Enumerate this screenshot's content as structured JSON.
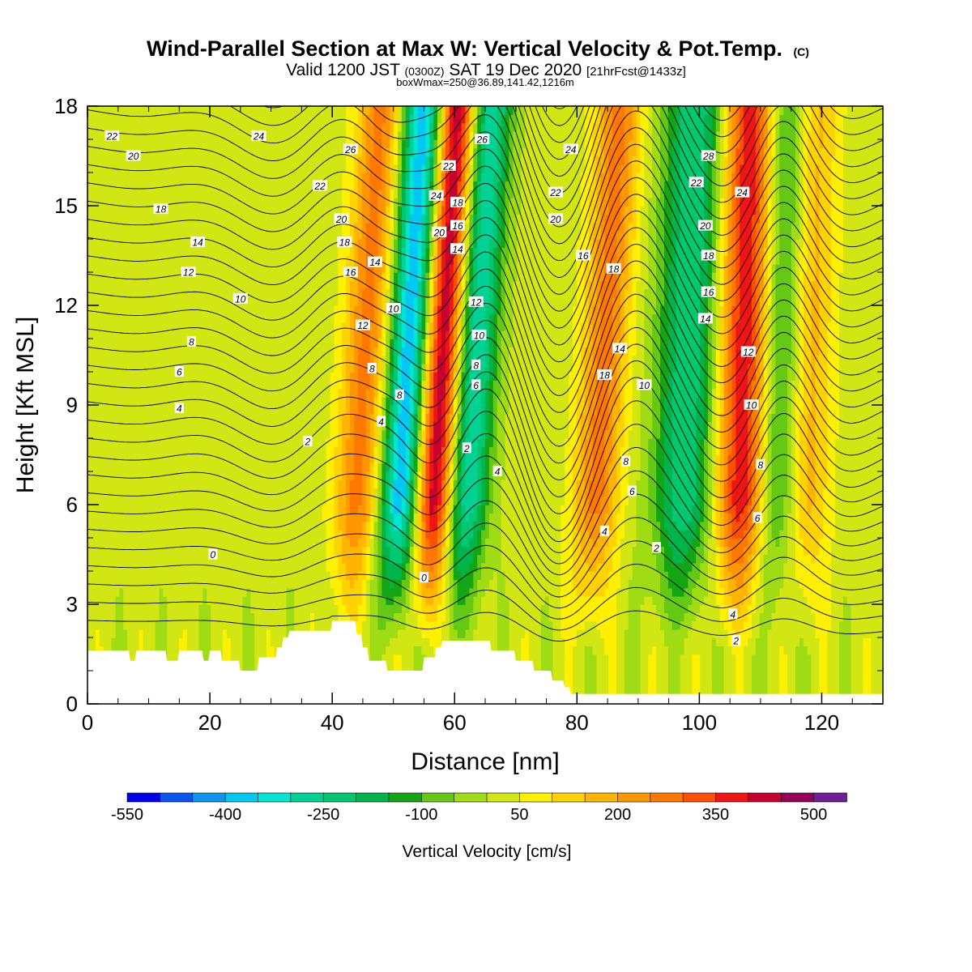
{
  "title": {
    "main": "Wind-Parallel Section at Max W: Vertical Velocity & Pot.Temp.",
    "main_mark": "(C)",
    "line2_a": "Valid 1200 JST",
    "line2_b": "(0300Z)",
    "line2_c": "SAT 19 Dec 2020",
    "line2_d": "[21hrFcst@1433z]",
    "line3": "boxWmax=250@36.89,141.42,1216m"
  },
  "chart_data": {
    "type": "heatmap",
    "xlabel": "Distance [nm]",
    "ylabel": "Height [Kft MSL]",
    "xlim": [
      0,
      130
    ],
    "ylim": [
      0,
      18
    ],
    "x_ticks": [
      "0",
      "20",
      "40",
      "60",
      "80",
      "100",
      "120"
    ],
    "y_ticks": [
      "0",
      "3",
      "6",
      "9",
      "12",
      "15",
      "18"
    ],
    "colorbar": {
      "label": "Vertical Velocity [cm/s]",
      "ticks": [
        "-550",
        "-400",
        "-250",
        "-100",
        "50",
        "200",
        "350",
        "500"
      ],
      "levels": [
        -550,
        -500,
        -450,
        -400,
        -350,
        -300,
        -250,
        -200,
        -150,
        -100,
        -50,
        0,
        50,
        100,
        150,
        200,
        250,
        300,
        350,
        400,
        450,
        500,
        550
      ],
      "colors": [
        "#0000ee",
        "#0a55f0",
        "#0a96f5",
        "#00c8f5",
        "#00e6d2",
        "#00d296",
        "#00c86e",
        "#00b44b",
        "#14a514",
        "#64c814",
        "#a0dc14",
        "#d2e614",
        "#fff000",
        "#ffd200",
        "#ffb400",
        "#ff9600",
        "#ff7800",
        "#ff5000",
        "#f01414",
        "#c8002d",
        "#96005a",
        "#6e1e96"
      ]
    },
    "updrafts": [
      {
        "x_nm": 57.5,
        "peak_cm_s": 450
      },
      {
        "x_nm": 84,
        "peak_cm_s": 250
      },
      {
        "x_nm": 107,
        "peak_cm_s": 380
      },
      {
        "x_nm": 118,
        "peak_cm_s": 150
      },
      {
        "x_nm": 45,
        "peak_cm_s": 250
      }
    ],
    "downdrafts": [
      {
        "x_nm": 52,
        "peak_cm_s": -420
      },
      {
        "x_nm": 63,
        "peak_cm_s": -320
      },
      {
        "x_nm": 98,
        "peak_cm_s": -270
      },
      {
        "x_nm": 113,
        "peak_cm_s": -180
      }
    ],
    "theta_contour_labels": [
      {
        "value": "22",
        "x_nm": 4,
        "y_kft": 17.1
      },
      {
        "value": "20",
        "x_nm": 7.5,
        "y_kft": 16.5
      },
      {
        "value": "18",
        "x_nm": 12,
        "y_kft": 14.9
      },
      {
        "value": "14",
        "x_nm": 18,
        "y_kft": 13.9
      },
      {
        "value": "12",
        "x_nm": 16.5,
        "y_kft": 13.0
      },
      {
        "value": "10",
        "x_nm": 25,
        "y_kft": 12.2
      },
      {
        "value": "8",
        "x_nm": 17,
        "y_kft": 10.9
      },
      {
        "value": "6",
        "x_nm": 15,
        "y_kft": 10.0
      },
      {
        "value": "4",
        "x_nm": 15,
        "y_kft": 8.9
      },
      {
        "value": "2",
        "x_nm": 36,
        "y_kft": 7.9
      },
      {
        "value": "0",
        "x_nm": 20.5,
        "y_kft": 4.5
      },
      {
        "value": "24",
        "x_nm": 28,
        "y_kft": 17.1
      },
      {
        "value": "26",
        "x_nm": 43,
        "y_kft": 16.7
      },
      {
        "value": "22",
        "x_nm": 38,
        "y_kft": 15.6
      },
      {
        "value": "20",
        "x_nm": 41.5,
        "y_kft": 14.6
      },
      {
        "value": "18",
        "x_nm": 42,
        "y_kft": 13.9
      },
      {
        "value": "16",
        "x_nm": 43,
        "y_kft": 13.0
      },
      {
        "value": "14",
        "x_nm": 47,
        "y_kft": 13.3
      },
      {
        "value": "12",
        "x_nm": 45,
        "y_kft": 11.4
      },
      {
        "value": "10",
        "x_nm": 50,
        "y_kft": 11.9
      },
      {
        "value": "8",
        "x_nm": 46.5,
        "y_kft": 10.1
      },
      {
        "value": "8",
        "x_nm": 51,
        "y_kft": 9.3
      },
      {
        "value": "4",
        "x_nm": 48,
        "y_kft": 8.5
      },
      {
        "value": "0",
        "x_nm": 55,
        "y_kft": 3.8
      },
      {
        "value": "22",
        "x_nm": 59,
        "y_kft": 16.2
      },
      {
        "value": "24",
        "x_nm": 57,
        "y_kft": 15.3
      },
      {
        "value": "20",
        "x_nm": 57.5,
        "y_kft": 14.2
      },
      {
        "value": "18",
        "x_nm": 60.5,
        "y_kft": 15.1
      },
      {
        "value": "16",
        "x_nm": 60.5,
        "y_kft": 14.4
      },
      {
        "value": "14",
        "x_nm": 60.5,
        "y_kft": 13.7
      },
      {
        "value": "26",
        "x_nm": 64.5,
        "y_kft": 17.0
      },
      {
        "value": "12",
        "x_nm": 63.5,
        "y_kft": 12.1
      },
      {
        "value": "10",
        "x_nm": 64,
        "y_kft": 11.1
      },
      {
        "value": "8",
        "x_nm": 63.5,
        "y_kft": 10.2
      },
      {
        "value": "6",
        "x_nm": 63.5,
        "y_kft": 9.6
      },
      {
        "value": "2",
        "x_nm": 62,
        "y_kft": 7.7
      },
      {
        "value": "4",
        "x_nm": 67,
        "y_kft": 7.0
      },
      {
        "value": "24",
        "x_nm": 79,
        "y_kft": 16.7
      },
      {
        "value": "22",
        "x_nm": 76.5,
        "y_kft": 15.4
      },
      {
        "value": "20",
        "x_nm": 76.5,
        "y_kft": 14.6
      },
      {
        "value": "16",
        "x_nm": 81,
        "y_kft": 13.5
      },
      {
        "value": "18",
        "x_nm": 86,
        "y_kft": 13.1
      },
      {
        "value": "14",
        "x_nm": 87,
        "y_kft": 10.7
      },
      {
        "value": "18",
        "x_nm": 84.5,
        "y_kft": 9.9
      },
      {
        "value": "10",
        "x_nm": 91,
        "y_kft": 9.6
      },
      {
        "value": "8",
        "x_nm": 88,
        "y_kft": 7.3
      },
      {
        "value": "6",
        "x_nm": 89,
        "y_kft": 6.4
      },
      {
        "value": "4",
        "x_nm": 84.5,
        "y_kft": 5.2
      },
      {
        "value": "2",
        "x_nm": 93,
        "y_kft": 4.7
      },
      {
        "value": "28",
        "x_nm": 101.5,
        "y_kft": 16.5
      },
      {
        "value": "22",
        "x_nm": 99.5,
        "y_kft": 15.7
      },
      {
        "value": "24",
        "x_nm": 107,
        "y_kft": 15.4
      },
      {
        "value": "20",
        "x_nm": 101,
        "y_kft": 14.4
      },
      {
        "value": "18",
        "x_nm": 101.5,
        "y_kft": 13.5
      },
      {
        "value": "16",
        "x_nm": 101.5,
        "y_kft": 12.4
      },
      {
        "value": "14",
        "x_nm": 101,
        "y_kft": 11.6
      },
      {
        "value": "12",
        "x_nm": 108,
        "y_kft": 10.6
      },
      {
        "value": "10",
        "x_nm": 108.5,
        "y_kft": 9.0
      },
      {
        "value": "8",
        "x_nm": 110,
        "y_kft": 7.2
      },
      {
        "value": "6",
        "x_nm": 109.5,
        "y_kft": 5.6
      },
      {
        "value": "4",
        "x_nm": 105.5,
        "y_kft": 2.7
      },
      {
        "value": "2",
        "x_nm": 106,
        "y_kft": 1.9
      }
    ]
  }
}
